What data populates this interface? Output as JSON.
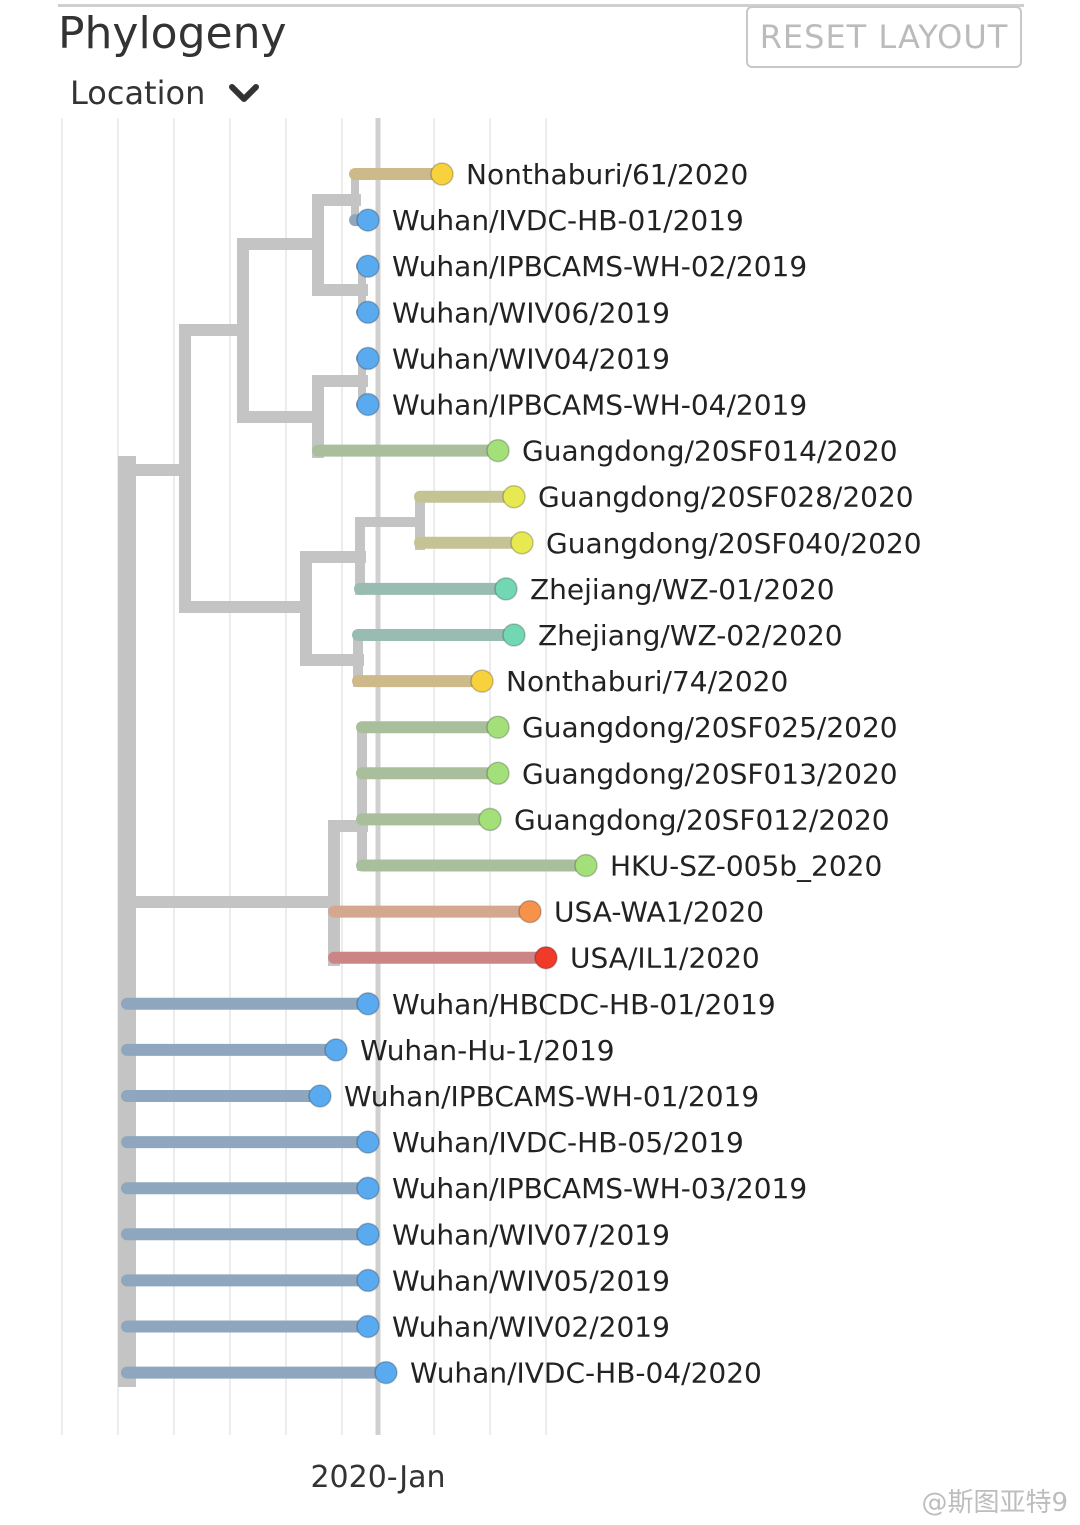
{
  "panel": {
    "title": "Phylogeny",
    "reset_label": "RESET LAYOUT",
    "color_by": "Location"
  },
  "colors": {
    "branch_internal": "#c4c4c4",
    "wuhan_tip": "#5aaaf0",
    "wuhan_branch": "#8ea7be",
    "nonthaburi_tip": "#f8d23c",
    "nonthaburi_branch": "#cdb98a",
    "guangdong_tip": "#a4e07a",
    "guangdong_branch": "#a9bf9c",
    "guangdong_yellow_tip": "#e6ea50",
    "guangdong_yellow_branch": "#c3c393",
    "zhejiang_tip": "#72d8b4",
    "zhejiang_branch": "#99bcb2",
    "usa_wa_tip": "#f6924a",
    "usa_wa_branch": "#d4a88e",
    "usa_il_tip": "#f03a2a",
    "usa_il_branch": "#cc8585"
  },
  "axis": {
    "tick_label": "2020-Jan"
  },
  "tips": [
    {
      "label": "Nonthaburi/61/2020",
      "group": "nonthaburi"
    },
    {
      "label": "Wuhan/IVDC-HB-01/2019",
      "group": "wuhan"
    },
    {
      "label": "Wuhan/IPBCAMS-WH-02/2019",
      "group": "wuhan"
    },
    {
      "label": "Wuhan/WIV06/2019",
      "group": "wuhan"
    },
    {
      "label": "Wuhan/WIV04/2019",
      "group": "wuhan"
    },
    {
      "label": "Wuhan/IPBCAMS-WH-04/2019",
      "group": "wuhan"
    },
    {
      "label": "Guangdong/20SF014/2020",
      "group": "guangdong"
    },
    {
      "label": "Guangdong/20SF028/2020",
      "group": "guangdong_yellow"
    },
    {
      "label": "Guangdong/20SF040/2020",
      "group": "guangdong_yellow"
    },
    {
      "label": "Zhejiang/WZ-01/2020",
      "group": "zhejiang"
    },
    {
      "label": "Zhejiang/WZ-02/2020",
      "group": "zhejiang"
    },
    {
      "label": "Nonthaburi/74/2020",
      "group": "nonthaburi"
    },
    {
      "label": "Guangdong/20SF025/2020",
      "group": "guangdong"
    },
    {
      "label": "Guangdong/20SF013/2020",
      "group": "guangdong"
    },
    {
      "label": "Guangdong/20SF012/2020",
      "group": "guangdong"
    },
    {
      "label": "HKU-SZ-005b_2020",
      "group": "guangdong"
    },
    {
      "label": "USA-WA1/2020",
      "group": "usa_wa"
    },
    {
      "label": "USA/IL1/2020",
      "group": "usa_il"
    },
    {
      "label": "Wuhan/HBCDC-HB-01/2019",
      "group": "wuhan"
    },
    {
      "label": "Wuhan-Hu-1/2019",
      "group": "wuhan"
    },
    {
      "label": "Wuhan/IPBCAMS-WH-01/2019",
      "group": "wuhan"
    },
    {
      "label": "Wuhan/IVDC-HB-05/2019",
      "group": "wuhan"
    },
    {
      "label": "Wuhan/IPBCAMS-WH-03/2019",
      "group": "wuhan"
    },
    {
      "label": "Wuhan/WIV07/2019",
      "group": "wuhan"
    },
    {
      "label": "Wuhan/WIV05/2019",
      "group": "wuhan"
    },
    {
      "label": "Wuhan/WIV02/2019",
      "group": "wuhan"
    },
    {
      "label": "Wuhan/IVDC-HB-04/2020",
      "group": "wuhan"
    }
  ],
  "watermark": "@斯图亚特9"
}
